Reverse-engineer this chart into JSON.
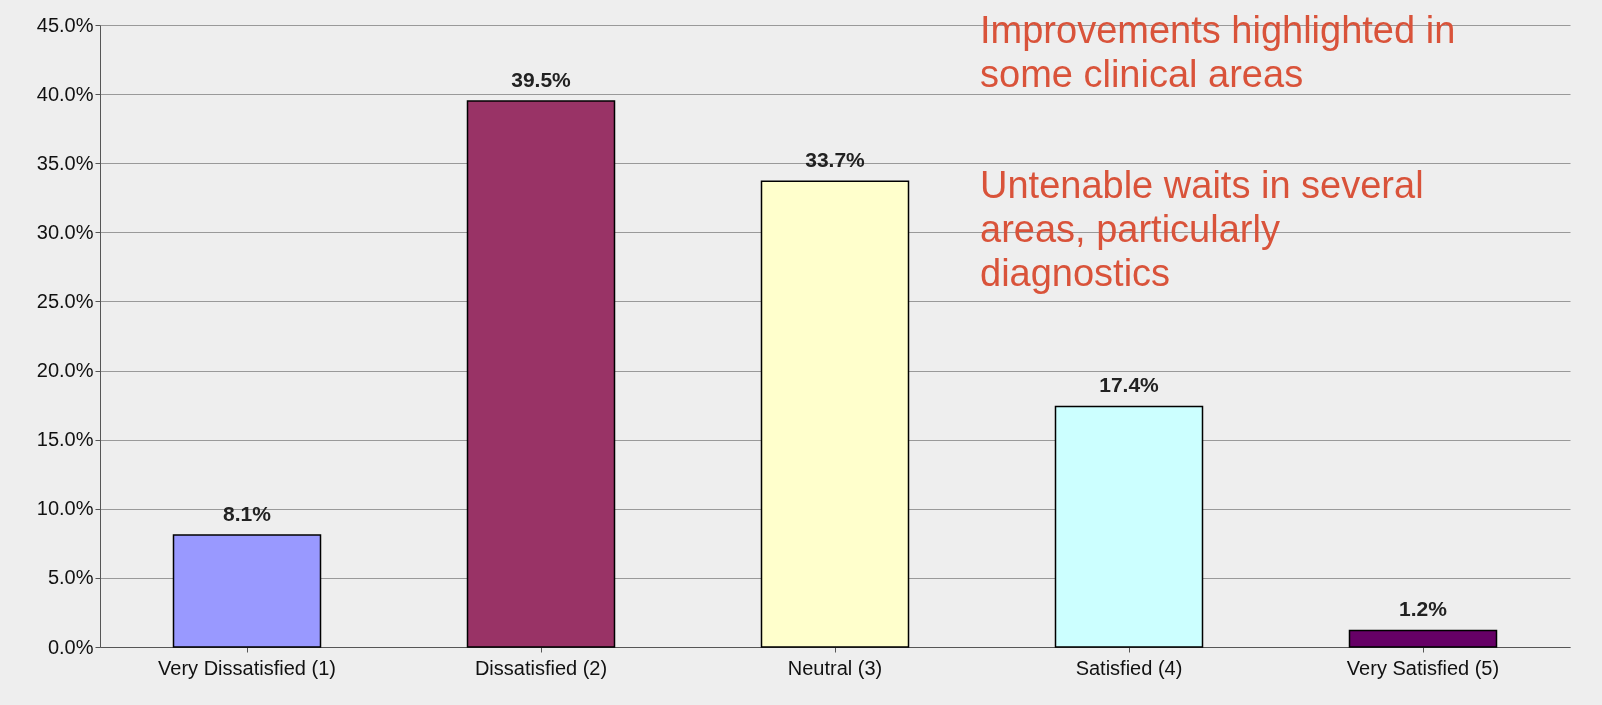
{
  "chart_data": {
    "type": "bar",
    "categories": [
      "Very Dissatisfied (1)",
      "Dissatisfied (2)",
      "Neutral (3)",
      "Satisfied (4)",
      "Very Satisfied (5)"
    ],
    "values": [
      8.1,
      39.5,
      33.7,
      17.4,
      1.2
    ],
    "colors": [
      "#9999ff",
      "#993366",
      "#ffffcc",
      "#ccffff",
      "#660066"
    ],
    "value_labels": [
      "8.1%",
      "39.5%",
      "33.7%",
      "17.4%",
      "1.2%"
    ],
    "ylim": [
      0,
      45
    ],
    "yticks": [
      {
        "value": 0,
        "label": "0.0%"
      },
      {
        "value": 5,
        "label": "5.0%"
      },
      {
        "value": 10,
        "label": "10.0%"
      },
      {
        "value": 15,
        "label": "15.0%"
      },
      {
        "value": 20,
        "label": "20.0%"
      },
      {
        "value": 25,
        "label": "25.0%"
      },
      {
        "value": 30,
        "label": "30.0%"
      },
      {
        "value": 35,
        "label": "35.0%"
      },
      {
        "value": 40,
        "label": "40.0%"
      },
      {
        "value": 45,
        "label": "45.0%"
      }
    ],
    "grid": "y",
    "annotations": [
      "Improvements highlighted in some clinical areas",
      "Untenable waits in several areas, particularly diagnostics"
    ]
  }
}
